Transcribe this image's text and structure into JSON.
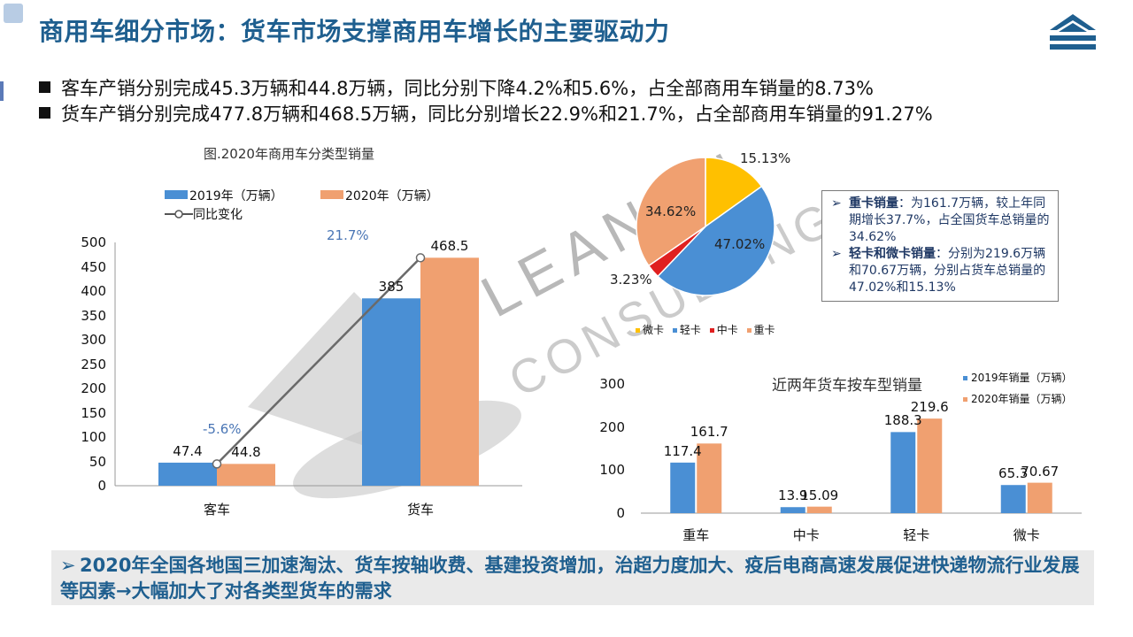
{
  "title": "商用车细分市场：货车市场支撑商用车增长的主要驱动力",
  "bullets": [
    "客车产销分别完成45.3万辆和44.8万辆，同比分别下降4.2%和5.6%，占全部商用车销量的8.73%",
    "货车产销分别完成477.8万辆和468.5万辆，同比分别增长22.9%和21.7%，占全部商用车销量的91.27%"
  ],
  "watermark": {
    "line1": "LEAN IN",
    "line2": "CONSULTING"
  },
  "info_box": {
    "heavy_title": "重卡销量",
    "heavy_text": "：为161.7万辆，较上年同期增长37.7%，占全国货车总销量的34.62%",
    "light_title": "轻卡和微卡销量",
    "light_text": "：分别为219.6万辆和70.67万辆，分别占货车总销量的47.02%和15.13%"
  },
  "conclusion": "2020年全国各地国三加速淘汰、货车按轴收费、基建投资增加，治超力度加大、疫后电商高速发展促进快递物流行业发展等因素→大幅加大了对各类型货车的需求",
  "colors": {
    "blue": "#4a8fd4",
    "orange": "#f0a070",
    "yellow": "#ffc000",
    "red": "#e02020",
    "title": "#1f5f8f"
  },
  "icons": {
    "bullet": "square-bullet-icon",
    "arrow": "chevron-right-icon",
    "logo": "mountain-logo-icon"
  },
  "chart_data": [
    {
      "type": "bar",
      "title": "图.2020年商用车分类型销量",
      "categories": [
        "客车",
        "货车"
      ],
      "series": [
        {
          "name": "2019年（万辆）",
          "values": [
            47.4,
            385
          ]
        },
        {
          "name": "2020年（万辆）",
          "values": [
            44.8,
            468.5
          ]
        }
      ],
      "line_series": {
        "name": "同比变化",
        "values": [
          "-5.6%",
          "21.7%"
        ]
      },
      "ylim": [
        0,
        500
      ],
      "yticks": [
        0,
        50,
        100,
        150,
        200,
        250,
        300,
        350,
        400,
        450,
        500
      ],
      "legend": "top-left"
    },
    {
      "type": "pie",
      "labels": [
        "微卡",
        "轻卡",
        "中卡",
        "重卡"
      ],
      "values": [
        15.13,
        47.02,
        3.23,
        34.62
      ],
      "value_labels": [
        "15.13%",
        "47.02%",
        "3.23%",
        "34.62%"
      ],
      "legend": "bottom"
    },
    {
      "type": "bar",
      "title": "近两年货车按车型销量",
      "categories": [
        "重车",
        "中卡",
        "轻卡",
        "微卡"
      ],
      "series": [
        {
          "name": "2019年销量（万辆）",
          "values": [
            117.4,
            13.9,
            188.3,
            65.3
          ]
        },
        {
          "name": "2020年销量（万辆）",
          "values": [
            161.7,
            15.09,
            219.6,
            70.67
          ]
        }
      ],
      "ylim": [
        0,
        300
      ],
      "yticks": [
        0,
        100,
        200,
        300
      ],
      "legend": "top-right"
    }
  ]
}
